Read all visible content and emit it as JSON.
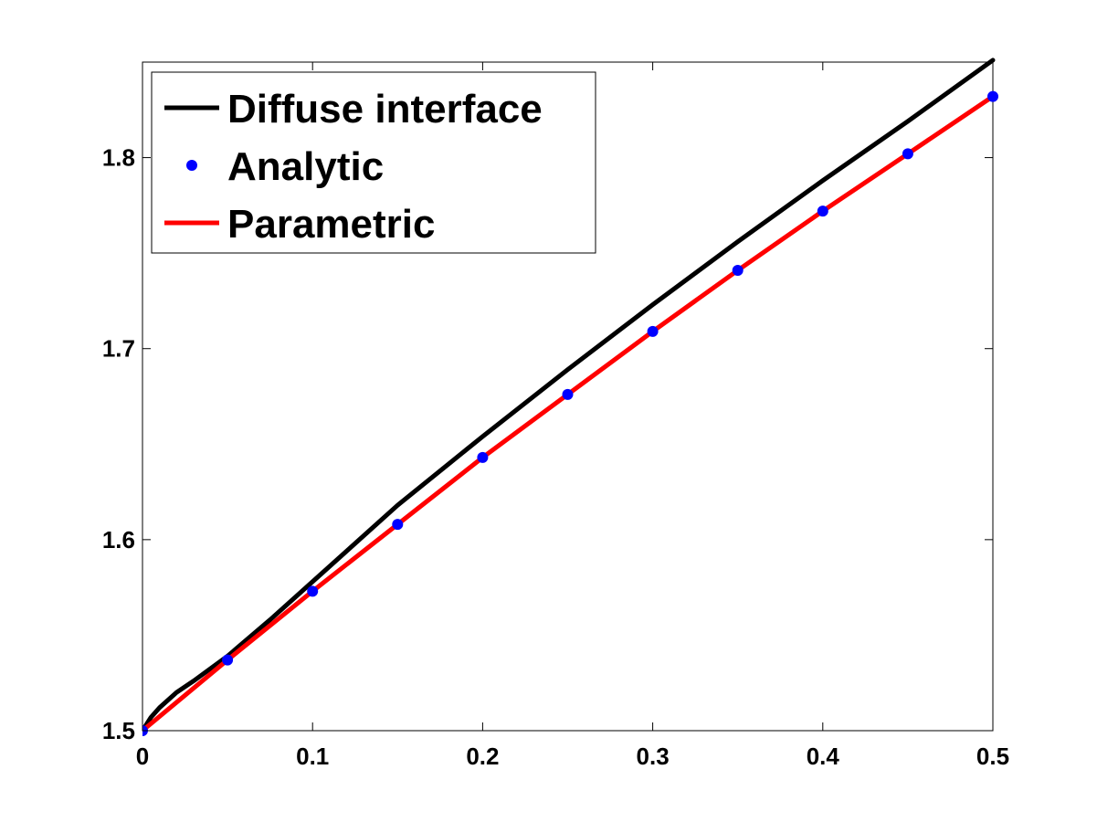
{
  "chart_data": {
    "type": "line",
    "title": "",
    "xlabel": "",
    "ylabel": "",
    "xlim": [
      0,
      0.5
    ],
    "ylim": [
      1.5,
      1.85
    ],
    "xticks": [
      "0",
      "0.1",
      "0.2",
      "0.3",
      "0.4",
      "0.5"
    ],
    "xtick_values": [
      0,
      0.1,
      0.2,
      0.3,
      0.4,
      0.5
    ],
    "yticks": [
      "1.5",
      "1.6",
      "1.7",
      "1.8"
    ],
    "ytick_values": [
      1.5,
      1.6,
      1.7,
      1.8
    ],
    "grid": false,
    "legend_position": "top-left",
    "series": [
      {
        "name": "Diffuse interface",
        "style": "line",
        "color": "#000000",
        "x": [
          0,
          0.005,
          0.01,
          0.02,
          0.03,
          0.05,
          0.075,
          0.1,
          0.15,
          0.2,
          0.25,
          0.3,
          0.35,
          0.4,
          0.45,
          0.5
        ],
        "y": [
          1.5,
          1.507,
          1.512,
          1.52,
          1.526,
          1.539,
          1.558,
          1.578,
          1.618,
          1.654,
          1.689,
          1.723,
          1.756,
          1.788,
          1.819,
          1.851
        ]
      },
      {
        "name": "Analytic",
        "style": "markers",
        "color": "#0000ff",
        "x": [
          0,
          0.05,
          0.1,
          0.15,
          0.2,
          0.25,
          0.3,
          0.35,
          0.4,
          0.45,
          0.5
        ],
        "y": [
          1.5,
          1.537,
          1.573,
          1.608,
          1.643,
          1.676,
          1.709,
          1.741,
          1.772,
          1.802,
          1.832
        ]
      },
      {
        "name": "Parametric",
        "style": "line",
        "color": "#ff0000",
        "x": [
          0,
          0.05,
          0.1,
          0.15,
          0.2,
          0.25,
          0.3,
          0.35,
          0.4,
          0.45,
          0.5
        ],
        "y": [
          1.5,
          1.537,
          1.573,
          1.608,
          1.643,
          1.676,
          1.709,
          1.741,
          1.772,
          1.802,
          1.832
        ]
      }
    ]
  }
}
